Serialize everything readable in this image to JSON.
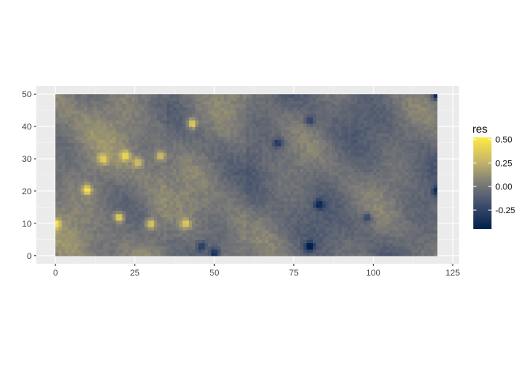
{
  "chart_data": {
    "type": "heatmap",
    "title": "",
    "xlabel": "",
    "ylabel": "",
    "xlim": [
      -6,
      127
    ],
    "ylim": [
      -2.5,
      52.5
    ],
    "grid": true,
    "x_ticks": [
      0,
      25,
      50,
      75,
      100,
      125
    ],
    "y_ticks": [
      0,
      10,
      20,
      30,
      40,
      50
    ],
    "x_tick_labels": [
      "0",
      "25",
      "50",
      "75",
      "100",
      "125"
    ],
    "y_tick_labels": [
      "0",
      "10",
      "20",
      "30",
      "40",
      "50"
    ],
    "x_range": [
      0,
      120
    ],
    "y_range": [
      0,
      50
    ],
    "fill_variable": "res",
    "fill_range": [
      -0.45,
      0.52
    ],
    "typical_value": 0.0,
    "legend": {
      "title": "res",
      "breaks": [
        0.5,
        0.25,
        0.0,
        -0.25
      ],
      "labels": [
        "0.50",
        "0.25",
        "0.00",
        "-0.25"
      ],
      "placement": "right"
    },
    "highlights": [
      {
        "x": 10,
        "y": 20.5,
        "value": 0.45
      },
      {
        "x": 15,
        "y": 30,
        "value": 0.35
      },
      {
        "x": 20,
        "y": 12,
        "value": 0.5
      },
      {
        "x": 30,
        "y": 10,
        "value": 0.42
      },
      {
        "x": 43,
        "y": 41,
        "value": 0.5
      },
      {
        "x": 0,
        "y": 10,
        "value": 0.45
      },
      {
        "x": 22,
        "y": 31,
        "value": 0.42
      },
      {
        "x": 26,
        "y": 29,
        "value": 0.3
      },
      {
        "x": 33,
        "y": 31,
        "value": 0.3
      },
      {
        "x": 41,
        "y": 10,
        "value": 0.35
      },
      {
        "x": 46,
        "y": 3,
        "value": -0.3
      },
      {
        "x": 50,
        "y": 1,
        "value": -0.35
      },
      {
        "x": 80,
        "y": 3,
        "value": -0.45
      },
      {
        "x": 83,
        "y": 16,
        "value": -0.35
      },
      {
        "x": 70,
        "y": 35,
        "value": -0.3
      },
      {
        "x": 120,
        "y": 50,
        "value": -0.45
      },
      {
        "x": 120,
        "y": 20,
        "value": -0.3
      },
      {
        "x": 98,
        "y": 12,
        "value": -0.25
      },
      {
        "x": 80,
        "y": 42,
        "value": -0.25
      }
    ],
    "colors": {
      "panel_background": "#ebebeb",
      "grid_major": "#ffffff",
      "scale_low": "#00204d",
      "scale_mid": "#7c7b78",
      "scale_high": "#ffea46"
    }
  }
}
